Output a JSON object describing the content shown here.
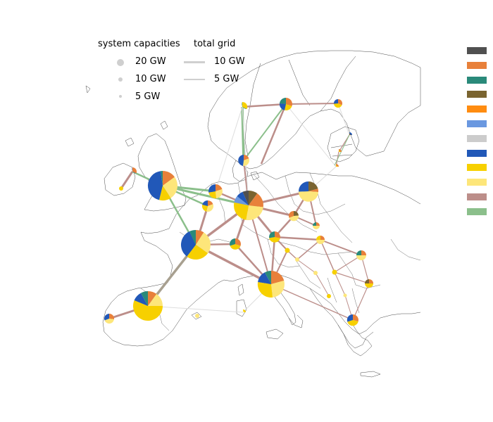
{
  "legend": {
    "capacities_title": "system capacities",
    "grid_title": "total grid",
    "capacity_items": [
      {
        "label": "20 GW",
        "value_gw": 20
      },
      {
        "label": "10 GW",
        "value_gw": 10
      },
      {
        "label": "5 GW",
        "value_gw": 5
      }
    ],
    "grid_items": [
      {
        "label": "10 GW",
        "value_gw": 10
      },
      {
        "label": "5 GW",
        "value_gw": 5
      }
    ],
    "legend_color": "#cfcfcf"
  },
  "carrier_swatches": [
    "#505050",
    "#e8803a",
    "#2a8a7a",
    "#7a6430",
    "#ff8c10",
    "#6a98e0",
    "#cccccc",
    "#2158b8",
    "#f7d000",
    "#fde67a",
    "#bc8e8a",
    "#8bbf8b"
  ],
  "colors": {
    "hvac": "#bc8e8a",
    "hvdc": "#8bbf8b",
    "minor_link": "#dddddd",
    "country_border": "#333333"
  }
}
